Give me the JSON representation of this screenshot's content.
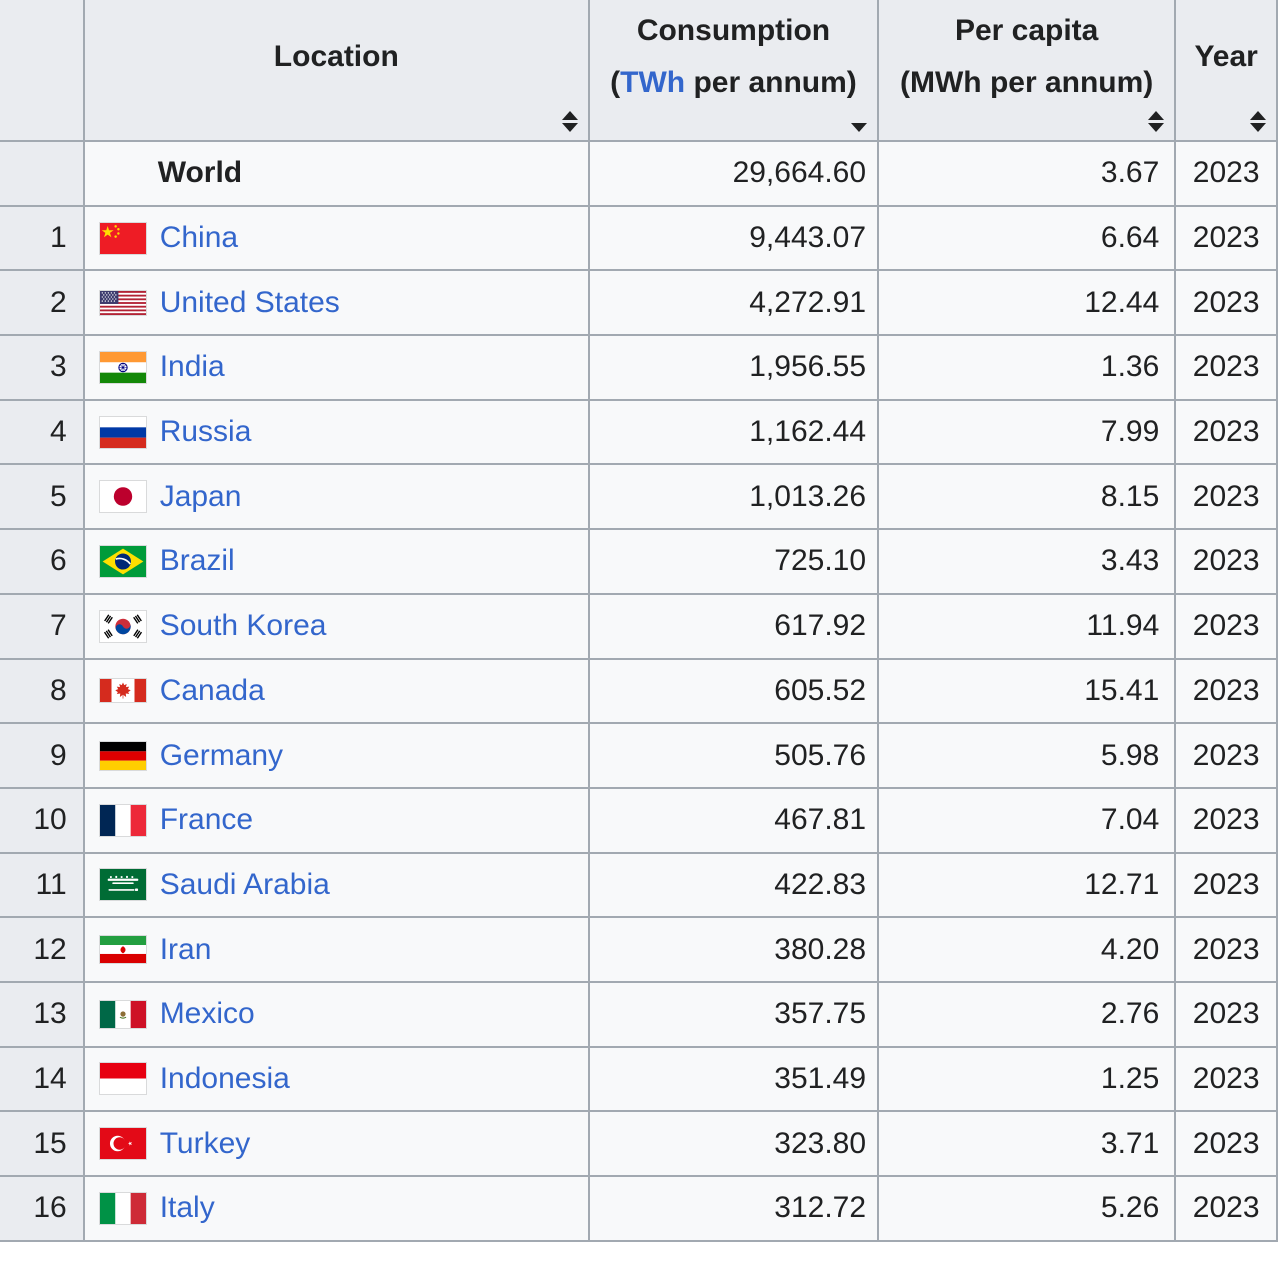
{
  "colors": {
    "link_blue": "#3366cc",
    "header_bg": "#eaecf0",
    "row_bg": "#f8f9fa",
    "rank_bg": "#eaecf0",
    "border_gray": "#a2a9b1",
    "text": "#202122"
  },
  "table": {
    "headers": {
      "rank": {
        "label": ""
      },
      "location": {
        "label": "Location",
        "sort_icon": "sort-both"
      },
      "consumption": {
        "title": "Consumption",
        "unit_prefix": "(",
        "unit_link": "TWh",
        "unit_suffix": " per annum)",
        "sort_icon": "sort-descending"
      },
      "per_capita": {
        "title": "Per capita",
        "unit": "(MWh per annum)",
        "sort_icon": "sort-both"
      },
      "year": {
        "label": "Year",
        "sort_icon": "sort-both"
      }
    },
    "rows": [
      {
        "rank": "",
        "location": "World",
        "flag": null,
        "is_world": true,
        "consumption": "29,664.60",
        "per_capita": "3.67",
        "year": "2023"
      },
      {
        "rank": "1",
        "location": "China",
        "flag": "china-flag-icon",
        "consumption": "9,443.07",
        "per_capita": "6.64",
        "year": "2023"
      },
      {
        "rank": "2",
        "location": "United States",
        "flag": "united-states-flag-icon",
        "consumption": "4,272.91",
        "per_capita": "12.44",
        "year": "2023"
      },
      {
        "rank": "3",
        "location": "India",
        "flag": "india-flag-icon",
        "consumption": "1,956.55",
        "per_capita": "1.36",
        "year": "2023"
      },
      {
        "rank": "4",
        "location": "Russia",
        "flag": "russia-flag-icon",
        "consumption": "1,162.44",
        "per_capita": "7.99",
        "year": "2023"
      },
      {
        "rank": "5",
        "location": "Japan",
        "flag": "japan-flag-icon",
        "consumption": "1,013.26",
        "per_capita": "8.15",
        "year": "2023"
      },
      {
        "rank": "6",
        "location": "Brazil",
        "flag": "brazil-flag-icon",
        "consumption": "725.10",
        "per_capita": "3.43",
        "year": "2023"
      },
      {
        "rank": "7",
        "location": "South Korea",
        "flag": "south-korea-flag-icon",
        "consumption": "617.92",
        "per_capita": "11.94",
        "year": "2023"
      },
      {
        "rank": "8",
        "location": "Canada",
        "flag": "canada-flag-icon",
        "consumption": "605.52",
        "per_capita": "15.41",
        "year": "2023"
      },
      {
        "rank": "9",
        "location": "Germany",
        "flag": "germany-flag-icon",
        "consumption": "505.76",
        "per_capita": "5.98",
        "year": "2023"
      },
      {
        "rank": "10",
        "location": "France",
        "flag": "france-flag-icon",
        "consumption": "467.81",
        "per_capita": "7.04",
        "year": "2023"
      },
      {
        "rank": "11",
        "location": "Saudi Arabia",
        "flag": "saudi-arabia-flag-icon",
        "consumption": "422.83",
        "per_capita": "12.71",
        "year": "2023"
      },
      {
        "rank": "12",
        "location": "Iran",
        "flag": "iran-flag-icon",
        "consumption": "380.28",
        "per_capita": "4.20",
        "year": "2023"
      },
      {
        "rank": "13",
        "location": "Mexico",
        "flag": "mexico-flag-icon",
        "consumption": "357.75",
        "per_capita": "2.76",
        "year": "2023"
      },
      {
        "rank": "14",
        "location": "Indonesia",
        "flag": "indonesia-flag-icon",
        "consumption": "351.49",
        "per_capita": "1.25",
        "year": "2023"
      },
      {
        "rank": "15",
        "location": "Turkey",
        "flag": "turkey-flag-icon",
        "consumption": "323.80",
        "per_capita": "3.71",
        "year": "2023"
      },
      {
        "rank": "16",
        "location": "Italy",
        "flag": "italy-flag-icon",
        "consumption": "312.72",
        "per_capita": "5.26",
        "year": "2023"
      }
    ]
  }
}
